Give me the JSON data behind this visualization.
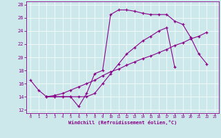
{
  "xlabel": "Windchill (Refroidissement éolien,°C)",
  "background_color": "#cce8ea",
  "line_color": "#880088",
  "xlim": [
    -0.5,
    23.5
  ],
  "ylim": [
    11.5,
    28.5
  ],
  "xticks": [
    0,
    1,
    2,
    3,
    4,
    5,
    6,
    7,
    8,
    9,
    10,
    11,
    12,
    13,
    14,
    15,
    16,
    17,
    18,
    19,
    20,
    21,
    22,
    23
  ],
  "yticks": [
    12,
    14,
    16,
    18,
    20,
    22,
    24,
    26,
    28
  ],
  "series1_x": [
    0,
    1,
    2,
    3,
    4,
    5,
    6,
    7,
    8,
    9,
    10,
    11,
    12,
    13,
    14,
    15,
    16,
    17,
    18,
    19,
    20,
    21,
    22
  ],
  "series1_y": [
    16.5,
    15.0,
    14.0,
    14.0,
    14.0,
    14.0,
    12.5,
    14.5,
    17.5,
    18.0,
    26.5,
    27.2,
    27.2,
    27.0,
    26.7,
    26.5,
    26.5,
    26.5,
    25.5,
    25.0,
    23.0,
    20.5,
    19.0
  ],
  "series2_x": [
    2,
    3,
    4,
    5,
    6,
    7,
    8,
    9,
    10,
    11,
    12,
    13,
    14,
    15,
    16,
    17,
    18
  ],
  "series2_y": [
    14.0,
    14.0,
    14.0,
    14.0,
    14.0,
    14.0,
    14.5,
    16.0,
    17.5,
    19.0,
    20.5,
    21.5,
    22.5,
    23.2,
    24.0,
    24.5,
    18.5
  ],
  "series3_x": [
    2,
    3,
    4,
    5,
    6,
    7,
    8,
    9,
    10,
    11,
    12,
    13,
    14,
    15,
    16,
    17,
    18,
    19,
    20,
    21,
    22
  ],
  "series3_y": [
    14.0,
    14.2,
    14.5,
    15.0,
    15.5,
    16.0,
    16.5,
    17.2,
    17.8,
    18.2,
    18.8,
    19.3,
    19.8,
    20.2,
    20.7,
    21.2,
    21.8,
    22.2,
    22.8,
    23.2,
    23.8
  ]
}
